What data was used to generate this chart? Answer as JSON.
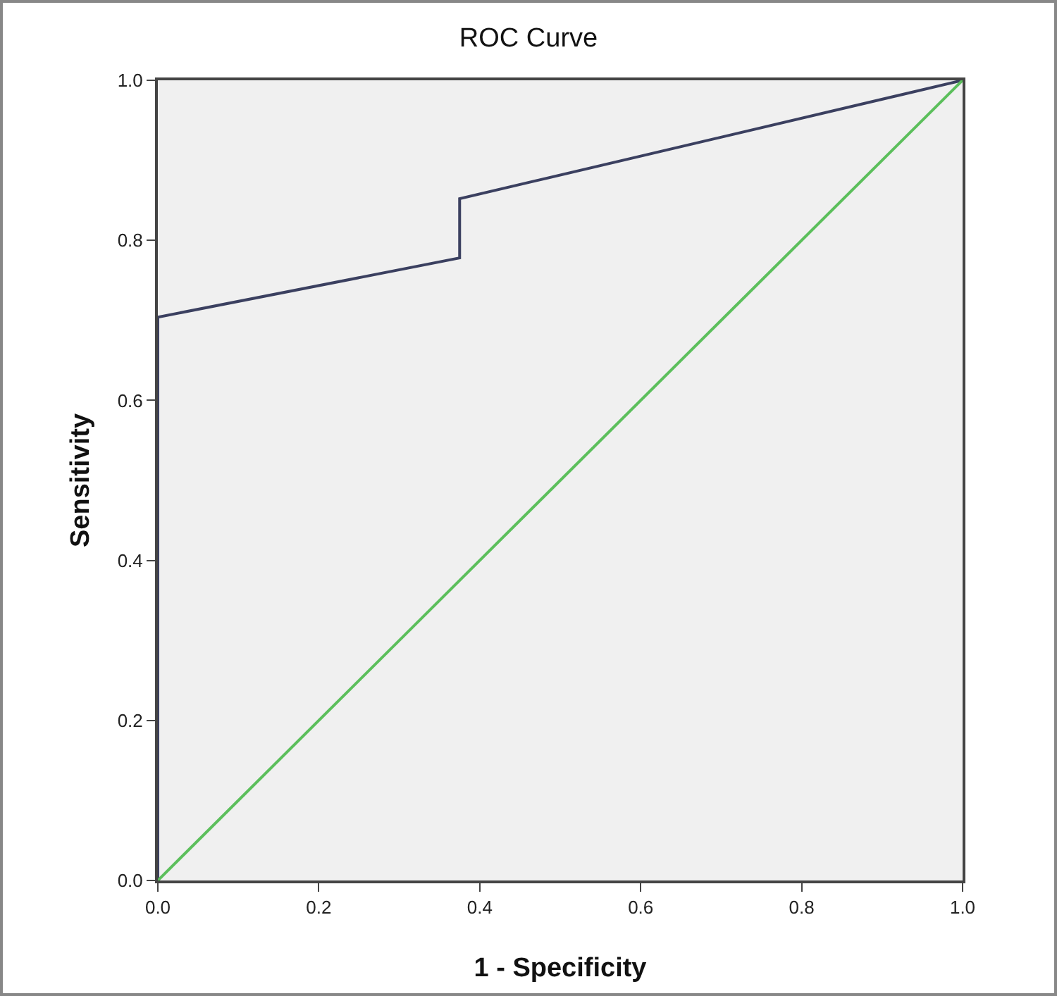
{
  "chart_data": {
    "type": "line",
    "title": "ROC Curve",
    "xlabel": "1 - Specificity",
    "ylabel": "Sensitivity",
    "series": [
      {
        "color": "#3b4060",
        "x": [
          0,
          0,
          0.375,
          0.375,
          1
        ],
        "values": [
          0,
          0.704,
          0.778,
          0.852,
          1
        ]
      },
      {
        "color": "#5cbf5c",
        "x": [
          0,
          1
        ],
        "values": [
          0,
          1
        ]
      }
    ],
    "xlim": [
      0,
      1
    ],
    "ylim": [
      0,
      1
    ],
    "xticks": [
      {
        "value": 0,
        "label": "0.0"
      },
      0.2,
      0.4,
      0.6,
      0.8,
      {
        "value": 1,
        "label": "1.0"
      }
    ],
    "yticks": [
      {
        "value": 0,
        "label": "0.0"
      },
      0.2,
      0.4,
      0.6,
      0.8,
      {
        "value": 1,
        "label": "1.0"
      }
    ],
    "marker": "none",
    "line_style": "solid"
  }
}
